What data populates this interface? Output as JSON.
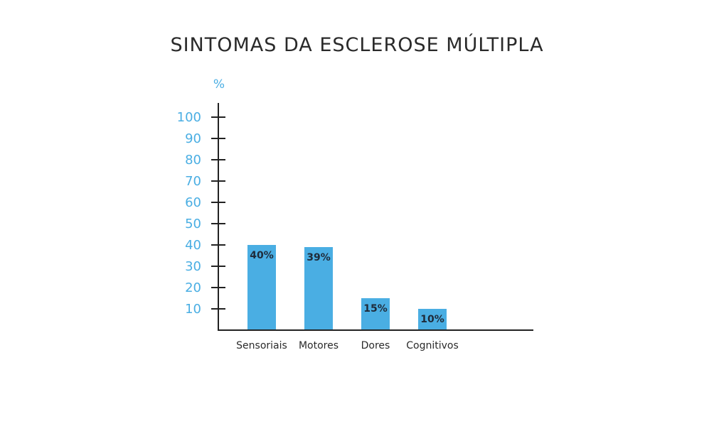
{
  "chart_data": {
    "type": "bar",
    "title": "SINTOMAS DA ESCLEROSE MÚLTIPLA",
    "xlabel": "",
    "ylabel": "%",
    "ylim": [
      0,
      100
    ],
    "yticks": [
      "10",
      "20",
      "30",
      "40",
      "50",
      "60",
      "70",
      "80",
      "90",
      "100"
    ],
    "categories": [
      "Sensoriais",
      "Motores",
      "Dores",
      "Cognitivos"
    ],
    "values": [
      40,
      39,
      15,
      10
    ],
    "data_labels": [
      "40%",
      "39%",
      "15%",
      "10%"
    ],
    "grid": false,
    "legend": "none"
  },
  "colors": {
    "bar": "#4aaee3",
    "axis": "#222222",
    "title": "#2a2a2a",
    "tick_label": "#4aaee3",
    "category_label": "#2a2a2a",
    "data_label": "#1f2b3a"
  }
}
